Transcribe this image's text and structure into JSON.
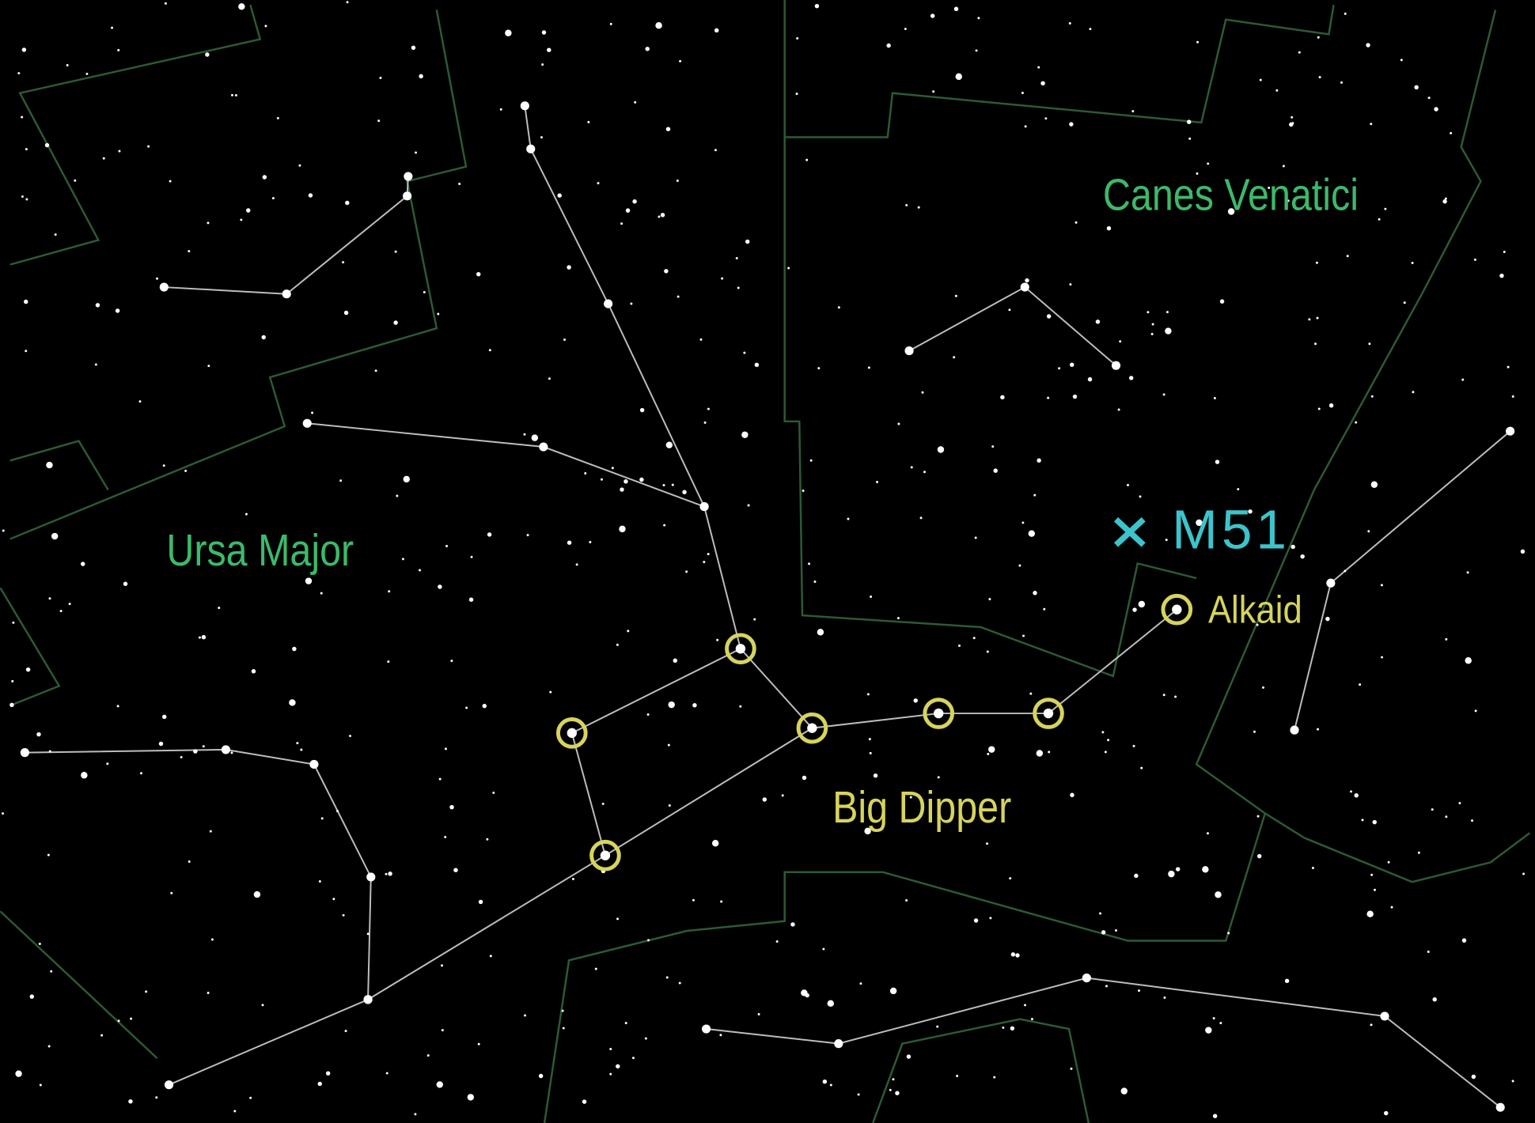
{
  "constellations": {
    "canes_venatici": "Canes Venatici",
    "ursa_major": "Ursa Major"
  },
  "asterism": "Big Dipper",
  "objects": {
    "galaxy": "M51",
    "star": "Alkaid"
  }
}
